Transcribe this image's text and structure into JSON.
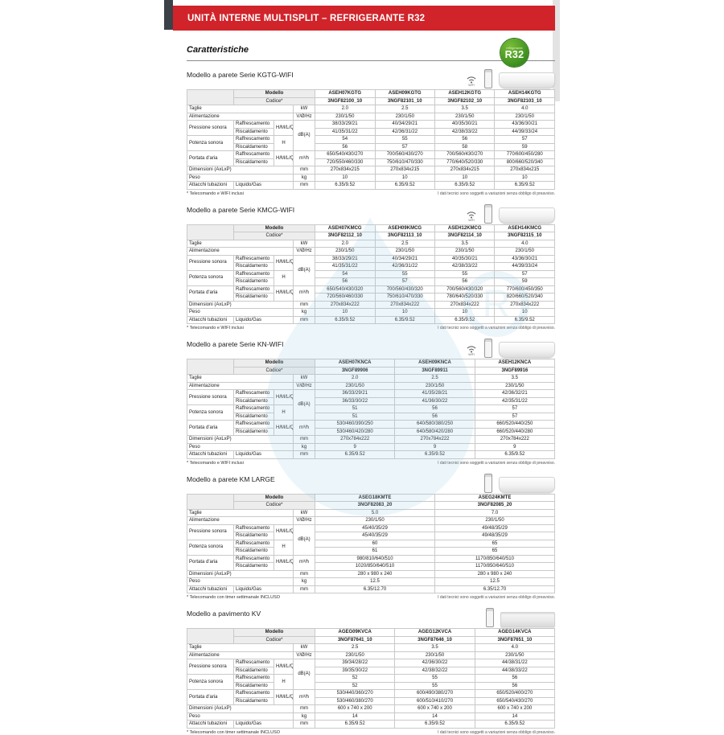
{
  "banner_title": "UNITÀ INTERNE MULTISPLIT – REFRIGERANTE R32",
  "heading": "Caratteristiche",
  "badge": {
    "small_label": "refrigerante",
    "label": "R32"
  },
  "footnote_right": "I dati tecnici sono soggetti a variazioni senza obbligo di preavviso.",
  "wifi_label": "WIFI",
  "row_labels": {
    "modello": "Modello",
    "codice": "Codice*",
    "taglie": "Taglie",
    "alimentazione": "Alimentazione",
    "pressione": "Pressione sonora",
    "potenza": "Potenza sonora",
    "portata": "Portata d'aria",
    "dimensioni": "Dimensioni (AxLxP)",
    "peso": "Peso",
    "attacchi": "Attacchi tubazioni",
    "raff": "Raffrescamento",
    "risc": "Riscaldamento",
    "liquido_gas": "Liquido/Gas",
    "hmlq": "H/M/L/Q",
    "h": "H"
  },
  "units": {
    "kw": "kW",
    "v": "V/Ø/Hz",
    "dba": "dB(A)",
    "m3h": "m³/h",
    "mm": "mm",
    "kg": "kg"
  },
  "sections": [
    {
      "id": "kgtg-wifi",
      "title": "Modello a parete Serie KGTG-WIFI",
      "has_wifi": true,
      "unit_type": "wall",
      "models": [
        "ASEH07KGTG",
        "ASEH09KGTG",
        "ASEH12KGTG",
        "ASEH14KGTG"
      ],
      "codes": [
        "3NGF82100_10",
        "3NGF82101_10",
        "3NGF82102_10",
        "3NGF82103_10"
      ],
      "taglie": [
        "2.0",
        "2.5",
        "3.5",
        "4.0"
      ],
      "alimentazione": [
        "230/1/50",
        "230/1/50",
        "230/1/50",
        "230/1/50"
      ],
      "pressione_raff": [
        "38/33/29/21",
        "40/34/29/21",
        "40/35/30/21",
        "43/36/30/21"
      ],
      "pressione_risc": [
        "41/35/31/22",
        "42/36/31/22",
        "42/38/33/22",
        "44/39/33/24"
      ],
      "potenza_raff": [
        "54",
        "55",
        "56",
        "57"
      ],
      "potenza_risc": [
        "56",
        "57",
        "58",
        "59"
      ],
      "portata_raff": [
        "650/540/430/270",
        "700/560/430/270",
        "700/560/430/270",
        "770/600/450/280"
      ],
      "portata_risc": [
        "720/550/460/330",
        "750/610/470/330",
        "770/640/520/330",
        "800/660/520/340"
      ],
      "dimensioni": [
        "270x834x215",
        "270x834x215",
        "270x834x215",
        "270x834x215"
      ],
      "peso": [
        "10",
        "10",
        "10",
        "10"
      ],
      "attacchi": [
        "6.35/9.52",
        "6.35/9.52",
        "6.35/9.52",
        "6.35/9.52"
      ],
      "footnote": "* Telecomando e WIFI inclusi"
    },
    {
      "id": "kmcg-wifi",
      "title": "Modello a parete Serie KMCG-WIFI",
      "has_wifi": true,
      "unit_type": "wall",
      "models": [
        "ASEH07KMCG",
        "ASEH09KMCG",
        "ASEH12KMCG",
        "ASEH14KMCG"
      ],
      "codes": [
        "3NGF82112_10",
        "3NGF82113_10",
        "3NGF82114_10",
        "3NGF82115_10"
      ],
      "taglie": [
        "2.0",
        "2.5",
        "3.5",
        "4.0"
      ],
      "alimentazione": [
        "230/1/50",
        "230/1/50",
        "230/1/50",
        "230/1/50"
      ],
      "pressione_raff": [
        "38/33/29/21",
        "40/34/29/21",
        "40/35/30/21",
        "43/36/30/21"
      ],
      "pressione_risc": [
        "41/35/31/22",
        "42/36/31/22",
        "42/38/33/22",
        "44/39/33/24"
      ],
      "potenza_raff": [
        "54",
        "55",
        "55",
        "57"
      ],
      "potenza_risc": [
        "56",
        "57",
        "56",
        "59"
      ],
      "portata_raff": [
        "650/540/430/320",
        "700/560/430/320",
        "700/560/430/320",
        "770/600/450/350"
      ],
      "portata_risc": [
        "720/560/460/330",
        "750/610/470/330",
        "780/640/520/330",
        "820/660/520/340"
      ],
      "dimensioni": [
        "270x834x222",
        "270x834x222",
        "270x834x222",
        "270x834x222"
      ],
      "peso": [
        "10",
        "10",
        "10",
        "10"
      ],
      "attacchi": [
        "6.35/9.52",
        "6.35/9.52",
        "6.35/9.52",
        "6.35/9.52"
      ],
      "footnote": "* Telecomando e WIFI inclusi"
    },
    {
      "id": "kn-wifi",
      "title": "Modello a parete Serie KN-WIFI",
      "has_wifi": true,
      "unit_type": "wall",
      "models": [
        "ASEH07KNCA",
        "ASEH09KNCA",
        "ASEH12KNCA"
      ],
      "codes": [
        "3NGF89906",
        "3NGF89911",
        "3NGF89916"
      ],
      "taglie": [
        "2.0",
        "2.5",
        "3.5"
      ],
      "alimentazione": [
        "230/1/50",
        "230/1/50",
        "230/1/50"
      ],
      "pressione_raff": [
        "36/33/29/21",
        "41/35/28/21",
        "42/36/32/21"
      ],
      "pressione_risc": [
        "36/33/30/22",
        "41/36/30/22",
        "42/35/31/22"
      ],
      "potenza_raff": [
        "51",
        "56",
        "57"
      ],
      "potenza_risc": [
        "51",
        "56",
        "57"
      ],
      "portata_raff": [
        "530/460/390/250",
        "640/580/380/250",
        "660/520/440/250"
      ],
      "portata_risc": [
        "530/460/420/280",
        "640/580/420/280",
        "660/520/440/280"
      ],
      "dimensioni": [
        "270x784x222",
        "270x784x222",
        "270x784x222"
      ],
      "peso": [
        "9",
        "9",
        "9"
      ],
      "attacchi": [
        "6.35/9.52",
        "6.35/9.52",
        "6.35/9.52"
      ],
      "footnote": "* Telecomando e WIFI inclusi"
    },
    {
      "id": "km-large",
      "title": "Modello a parete KM LARGE",
      "has_wifi": false,
      "unit_type": "wall",
      "models": [
        "ASEG18KMTE",
        "ASEG24KMTE"
      ],
      "codes": [
        "3NGF82083_20",
        "3NGF82085_20"
      ],
      "taglie": [
        "5.0",
        "7.0"
      ],
      "alimentazione": [
        "230/1/50",
        "230/1/50"
      ],
      "pressione_raff": [
        "45/40/35/29",
        "49/48/35/29"
      ],
      "pressione_risc": [
        "45/40/35/29",
        "49/48/35/29"
      ],
      "potenza_raff": [
        "60",
        "65"
      ],
      "potenza_risc": [
        "61",
        "65"
      ],
      "portata_raff": [
        "980/810/640/510",
        "1170/850/640/510"
      ],
      "portata_risc": [
        "1020/850/640/510",
        "1170/850/640/510"
      ],
      "dimensioni": [
        "280 x 980 x 240",
        "280 x 980 x 240"
      ],
      "peso": [
        "12.5",
        "12.5"
      ],
      "attacchi": [
        "6.35/12.70",
        "6.35/12.70"
      ],
      "footnote": "* Telecomando con timer settimanale INCLUSO"
    },
    {
      "id": "kv-pavimento",
      "title": "Modello a pavimento KV",
      "has_wifi": false,
      "unit_type": "floor",
      "models": [
        "AGEG09KVCA",
        "AGEG12KVCA",
        "AGEG14KVCA"
      ],
      "codes": [
        "3NGF87641_10",
        "3NGF87646_10",
        "3NGF87651_10"
      ],
      "taglie": [
        "2.5",
        "3.5",
        "4.0"
      ],
      "alimentazione": [
        "230/1/50",
        "230/1/50",
        "230/1/50"
      ],
      "pressione_raff": [
        "39/34/28/22",
        "42/36/30/22",
        "44/38/31/22"
      ],
      "pressione_risc": [
        "39/35/30/22",
        "42/38/32/22",
        "44/38/33/22"
      ],
      "potenza_raff": [
        "52",
        "55",
        "56"
      ],
      "potenza_risc": [
        "52",
        "55",
        "56"
      ],
      "portata_raff": [
        "530/440/360/270",
        "600/490/380/270",
        "650/520/400/270"
      ],
      "portata_risc": [
        "530/460/380/270",
        "600/510/410/270",
        "650/540/430/270"
      ],
      "dimensioni": [
        "600 x 740 x 200",
        "600 x 740 x 200",
        "600 x 740 x 200"
      ],
      "peso": [
        "14",
        "14",
        "14"
      ],
      "attacchi": [
        "6.35/9.52",
        "6.35/9.52",
        "6.35/9.52"
      ],
      "footnote": "* Telecomando con timer settimanale INCLUSO"
    }
  ]
}
